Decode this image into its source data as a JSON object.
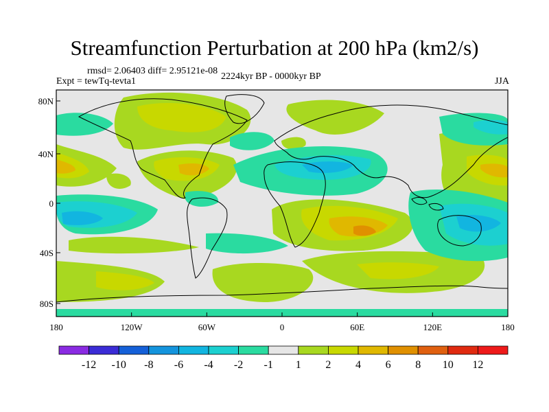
{
  "title": "Streamfunction Perturbation at 200 hPa (km2/s)",
  "stats": "rmsd= 2.06403 diff= 2.95121e-08",
  "experiment": "Expt = tewTq-tevta1",
  "period": "2224kyr BP - 0000kyr BP",
  "season": "JJA",
  "lat_ticks": [
    "80N",
    "40N",
    "0",
    "40S",
    "80S"
  ],
  "lon_ticks": [
    "180",
    "120W",
    "60W",
    "0",
    "60E",
    "120E",
    "180"
  ],
  "colorbar": {
    "labels": [
      "-12",
      "-10",
      "-8",
      "-6",
      "-4",
      "-2",
      "-1",
      "1",
      "2",
      "4",
      "6",
      "8",
      "10",
      "12"
    ],
    "colors": [
      "#8a2be2",
      "#3b2cd6",
      "#1560d8",
      "#1494dd",
      "#12b5e0",
      "#1cd0d0",
      "#2adba0",
      "#e6e6e6",
      "#a8d820",
      "#c8d800",
      "#e0b800",
      "#e09000",
      "#e06010",
      "#e02a10",
      "#ee1a1a"
    ]
  },
  "palette": {
    "background": "#e6e6e6",
    "pos1": "#a8d820",
    "pos2": "#c8d800",
    "pos3": "#e0b800",
    "pos4": "#e09000",
    "neg1": "#2adba0",
    "neg2": "#1cd0d0",
    "neg3": "#12b5e0"
  }
}
